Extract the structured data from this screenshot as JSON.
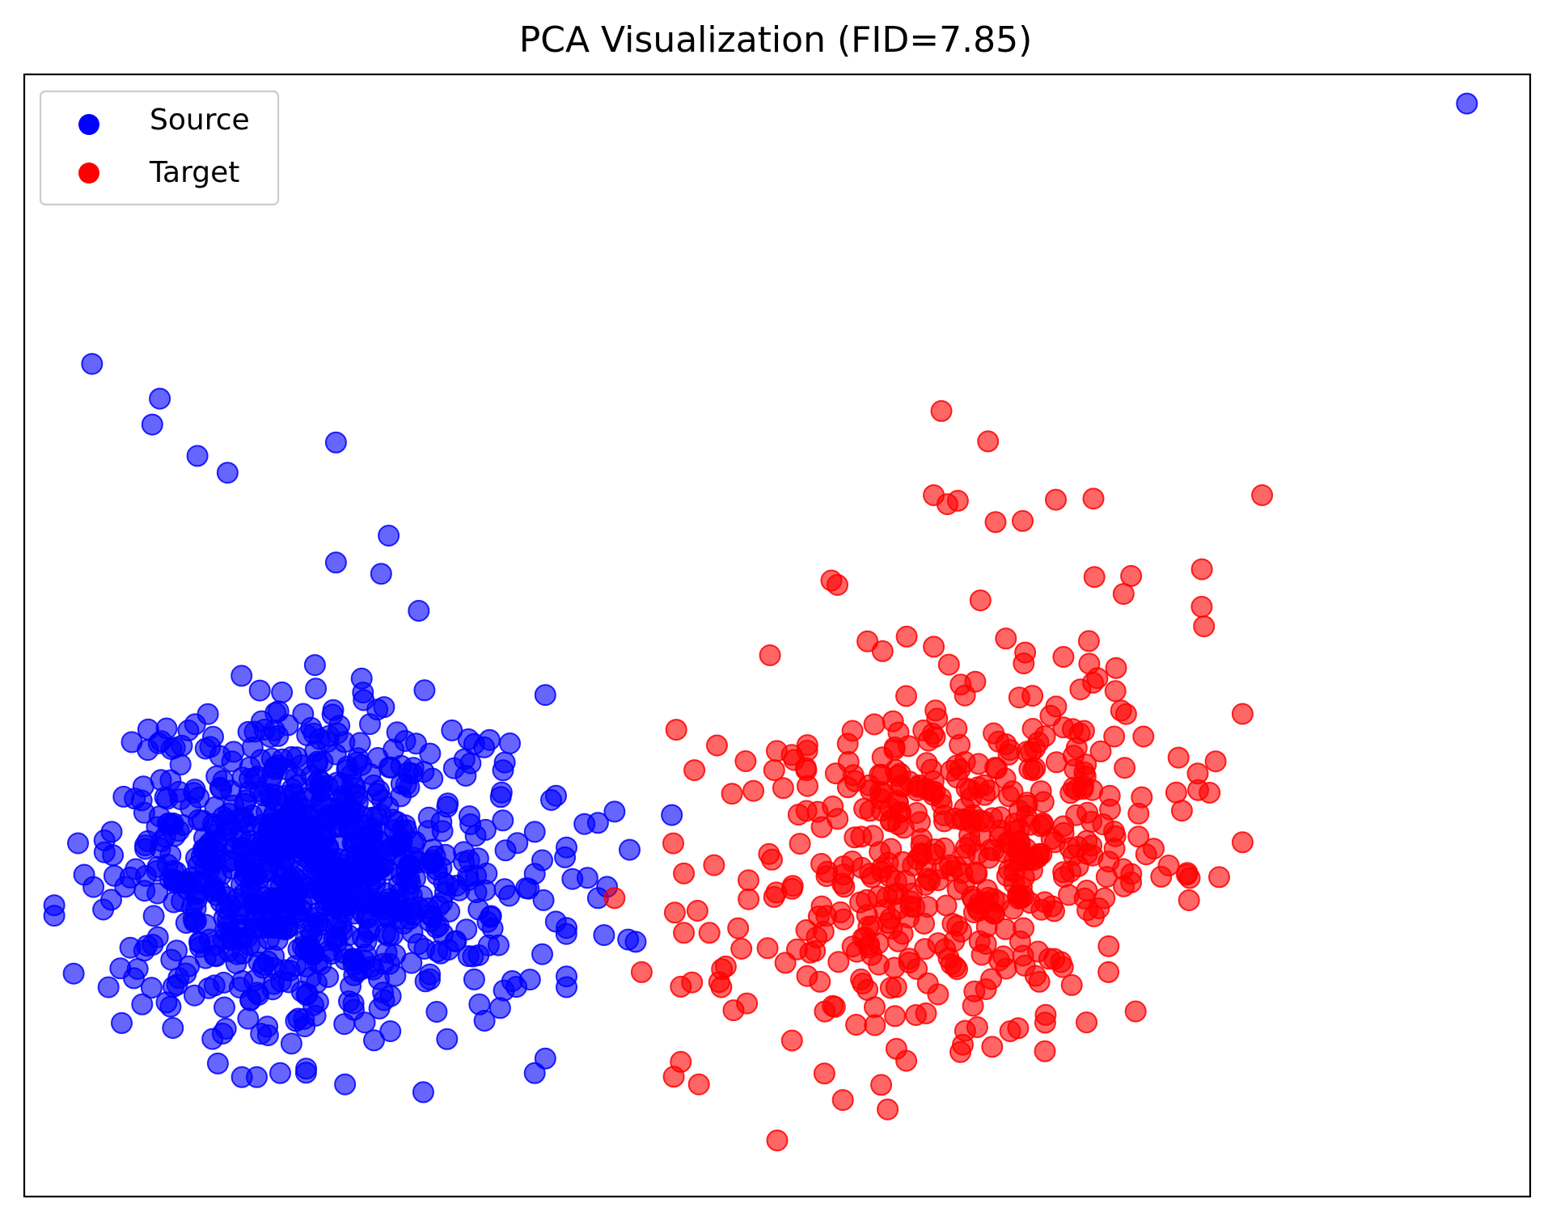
{
  "chart_data": {
    "type": "scatter",
    "title": "PCA Visualization (FID=7.85)",
    "xlabel": "",
    "ylabel": "",
    "xlim": [
      0,
      100
    ],
    "ylim": [
      0,
      100
    ],
    "grid": false,
    "ticks": false,
    "legend": {
      "placement": "top-left"
    },
    "marker_alpha": 0.6,
    "series": [
      {
        "name": "Source",
        "color": "#0000ff",
        "cluster": {
          "center": [
            19,
            29
          ],
          "spread": [
            6.3,
            6.8
          ],
          "count": 880,
          "seed": 7
        },
        "points": [
          [
            4.5,
            74.2
          ],
          [
            8.5,
            68.8
          ],
          [
            9.0,
            71.1
          ],
          [
            11.5,
            66.0
          ],
          [
            13.5,
            64.5
          ],
          [
            20.7,
            67.2
          ],
          [
            23.7,
            55.5
          ],
          [
            20.7,
            56.5
          ],
          [
            24.2,
            58.9
          ],
          [
            26.2,
            52.2
          ],
          [
            8.2,
            39.8
          ],
          [
            7.8,
            35.3
          ],
          [
            5.8,
            32.5
          ],
          [
            6.7,
            27.6
          ],
          [
            10.0,
            40.0
          ],
          [
            34.6,
            44.7
          ],
          [
            31.7,
            36.0
          ],
          [
            33.9,
            32.5
          ],
          [
            27.8,
            23.4
          ],
          [
            35.3,
            24.5
          ],
          [
            34.4,
            21.6
          ],
          [
            33.9,
            11.0
          ],
          [
            26.5,
            9.3
          ],
          [
            34.6,
            12.3
          ],
          [
            17.0,
            11.0
          ],
          [
            21.3,
            10.0
          ],
          [
            32.2,
            26.8
          ],
          [
            31.5,
            22.4
          ],
          [
            28.7,
            27.7
          ],
          [
            29.8,
            21.4
          ],
          [
            38.1,
            33.3
          ],
          [
            37.2,
            33.2
          ],
          [
            39.2,
            34.3
          ],
          [
            40.2,
            30.9
          ],
          [
            38.1,
            26.6
          ],
          [
            37.4,
            28.4
          ],
          [
            38.7,
            27.6
          ],
          [
            36.4,
            28.3
          ],
          [
            40.1,
            22.9
          ],
          [
            38.5,
            23.3
          ],
          [
            40.6,
            22.7
          ],
          [
            43.0,
            34.0
          ],
          [
            36.0,
            23.4
          ],
          [
            31.6,
            16.8
          ],
          [
            23.9,
            17.5
          ],
          [
            31.0,
            25.0
          ],
          [
            31.9,
            27.4
          ],
          [
            30.0,
            28.6
          ],
          [
            31.1,
            23.9
          ],
          [
            32.4,
            19.2
          ],
          [
            95.8,
            97.4
          ]
        ]
      },
      {
        "name": "Target",
        "color": "#ff0000",
        "cluster": {
          "center": [
            62,
            31
          ],
          "spread": [
            7,
            8
          ],
          "count": 470,
          "seed": 11
        },
        "points": [
          [
            60.9,
            70.0
          ],
          [
            64.0,
            67.3
          ],
          [
            62.0,
            62.0
          ],
          [
            60.4,
            62.5
          ],
          [
            61.3,
            61.7
          ],
          [
            82.2,
            62.5
          ],
          [
            71.0,
            62.2
          ],
          [
            64.5,
            60.1
          ],
          [
            66.3,
            60.2
          ],
          [
            68.5,
            62.1
          ],
          [
            54.0,
            54.5
          ],
          [
            53.6,
            54.9
          ],
          [
            78.2,
            55.9
          ],
          [
            73.5,
            55.3
          ],
          [
            73.0,
            53.7
          ],
          [
            70.7,
            49.5
          ],
          [
            60.4,
            49.0
          ],
          [
            61.4,
            47.4
          ],
          [
            72.5,
            47.1
          ],
          [
            43.3,
            41.6
          ],
          [
            46.0,
            40.2
          ],
          [
            44.5,
            38.0
          ],
          [
            47.9,
            38.8
          ],
          [
            47.0,
            35.9
          ],
          [
            49.8,
            38.0
          ],
          [
            51.9,
            38.2
          ],
          [
            50.4,
            36.4
          ],
          [
            43.2,
            25.3
          ],
          [
            39.2,
            26.6
          ],
          [
            41.0,
            20.0
          ],
          [
            43.6,
            12.0
          ],
          [
            44.8,
            10.0
          ],
          [
            50.0,
            5.0
          ],
          [
            47.1,
            16.6
          ],
          [
            43.8,
            28.8
          ],
          [
            43.8,
            23.5
          ],
          [
            45.5,
            23.5
          ],
          [
            48.1,
            26.5
          ],
          [
            58.0,
            27.0
          ],
          [
            60.0,
            19.0
          ],
          [
            63.0,
            17.0
          ],
          [
            66.0,
            15.0
          ],
          [
            67.8,
            15.5
          ],
          [
            72.0,
            20.0
          ],
          [
            73.8,
            16.5
          ],
          [
            73.5,
            28.0
          ],
          [
            75.0,
            31.0
          ],
          [
            74.5,
            30.5
          ],
          [
            75.5,
            28.5
          ],
          [
            76.0,
            29.5
          ],
          [
            67.0,
            38.0
          ],
          [
            70.5,
            38.5
          ],
          [
            69.0,
            33.0
          ],
          [
            76.5,
            36.0
          ],
          [
            57.0,
            48.6
          ],
          [
            58.6,
            49.9
          ],
          [
            55.0,
            41.5
          ],
          [
            58.0,
            37.5
          ],
          [
            63.0,
            34.0
          ],
          [
            56.2,
            36.2
          ]
        ]
      }
    ]
  }
}
